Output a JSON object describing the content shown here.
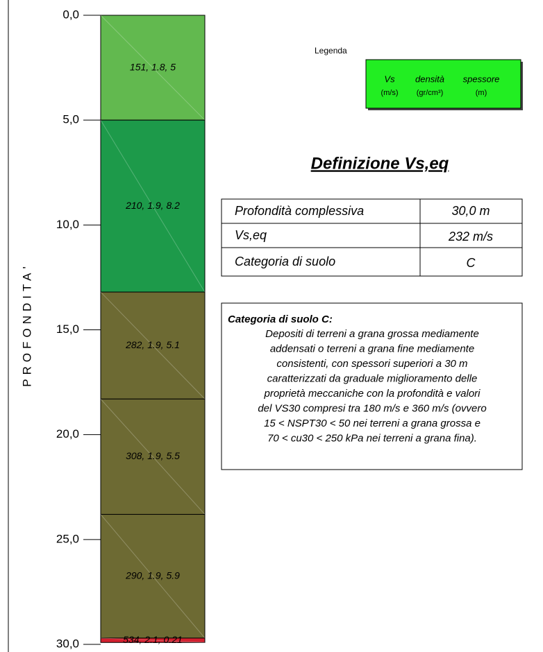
{
  "chart_data": {
    "type": "stratigraphy",
    "ylabel": "PROFONDITA'",
    "ylim": [
      0,
      30
    ],
    "yticks": [
      {
        "value": 0,
        "label": "0,0"
      },
      {
        "value": 5,
        "label": "5,0"
      },
      {
        "value": 10,
        "label": "10,0"
      },
      {
        "value": 15,
        "label": "15,0"
      },
      {
        "value": 20,
        "label": "20,0"
      },
      {
        "value": 25,
        "label": "25,0"
      },
      {
        "value": 30,
        "label": "30,0"
      }
    ],
    "values": [
      5,
      8.2,
      5.1,
      5.5,
      5.9,
      0.21
    ],
    "value_labels": [
      "151, 1.8, 5",
      "210, 1.9, 8.2",
      "282, 1.9, 5.1",
      "308, 1.9, 5.5",
      "290, 1.9, 5.9",
      "534, 2.1, 0.21"
    ],
    "colors": [
      "#62b94f",
      "#1d9a4a",
      "#6d6a33",
      "#6d6a33",
      "#6d6a33",
      "#d3202f"
    ]
  },
  "legend": {
    "title": "Legenda",
    "columns": [
      "Vs",
      "densità",
      "spessore"
    ],
    "units": [
      "(m/s)",
      "(gr/cm³)",
      "(m)"
    ],
    "color": "#22ee22"
  },
  "summary": {
    "title": "Definizione Vs,eq",
    "rows": [
      [
        "Profondità complessiva",
        "30,0 m"
      ],
      [
        "Vs,eq",
        "232 m/s"
      ],
      [
        "Categoria di suolo",
        "C"
      ]
    ]
  },
  "description": {
    "title": "Categoria di suolo C:",
    "lines": [
      "Depositi di terreni a grana grossa mediamente",
      "addensati o terreni a grana fine mediamente",
      "consistenti, con spessori superiori a 30 m",
      "caratterizzati da graduale miglioramento delle",
      "proprietà meccaniche con la profondità e valori",
      "del VS30 compresi tra 180 m/s e 360 m/s (ovvero",
      "15 < NSPT30 < 50 nei terreni a grana grossa e",
      "70 < cu30 < 250 kPa nei terreni a grana fina)."
    ]
  }
}
